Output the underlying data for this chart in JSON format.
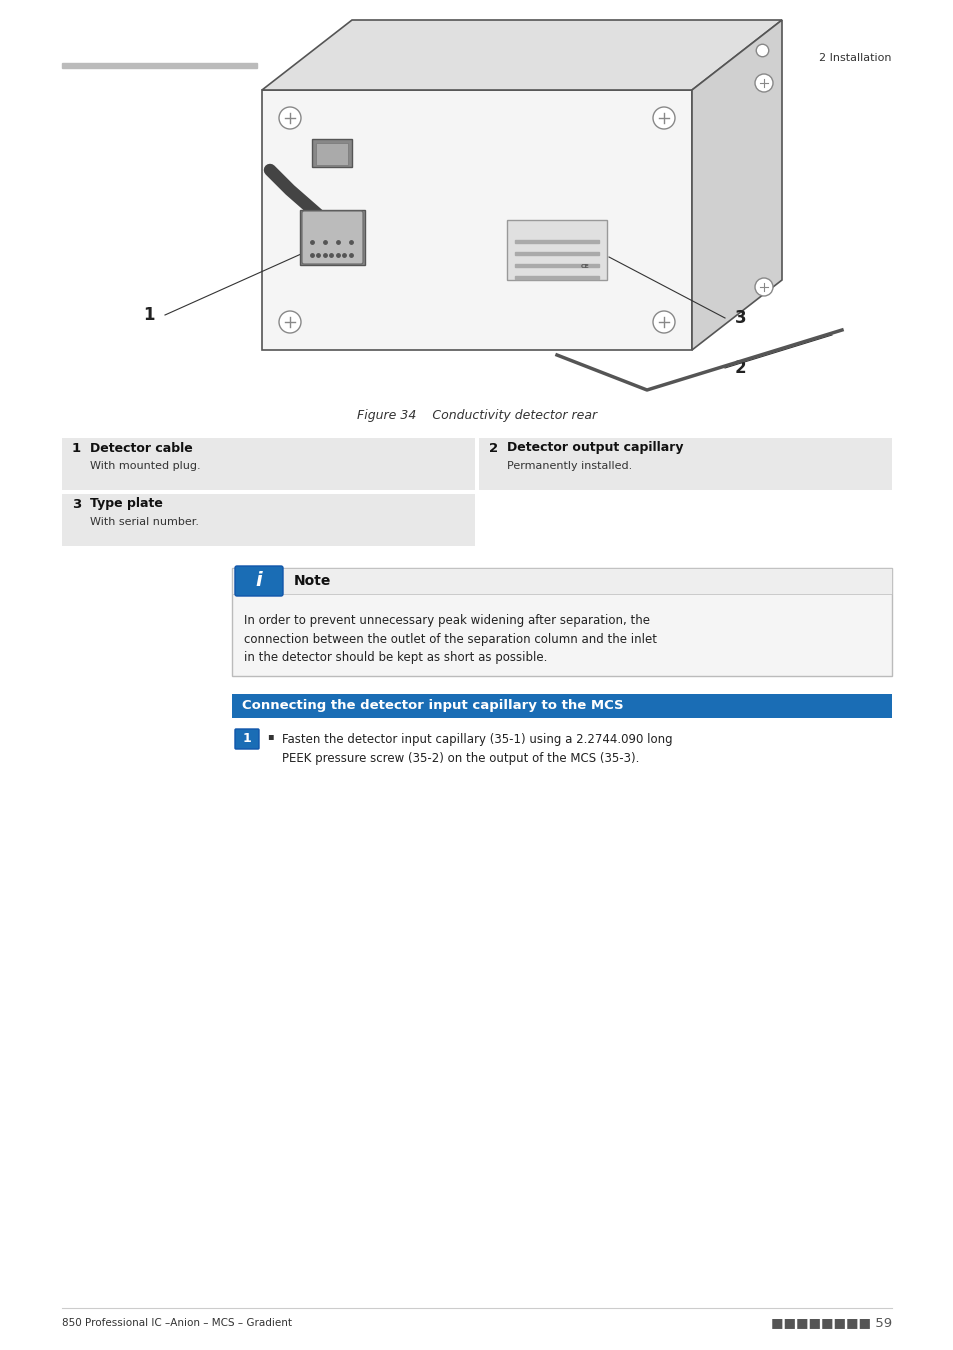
{
  "page_bg": "#ffffff",
  "header_left_text": "========================",
  "header_right_text": "2 Installation",
  "header_font_size": 8,
  "figure_caption": "Figure 34    Conductivity detector rear",
  "figure_caption_font_size": 9,
  "table_bg": "#e8e8e8",
  "label_entries": [
    {
      "num": "1",
      "title": "Detector cable",
      "desc": "With mounted plug.",
      "col": 0
    },
    {
      "num": "2",
      "title": "Detector output capillary",
      "desc": "Permanently installed.",
      "col": 1
    },
    {
      "num": "3",
      "title": "Type plate",
      "desc": "With serial number.",
      "col": 0
    }
  ],
  "note_icon_color": "#1a6db5",
  "note_title": "Note",
  "note_text": "In order to prevent unnecessary peak widening after separation, the\nconnection between the outlet of the separation column and the inlet\nin the detector should be kept as short as possible.",
  "section_title": "Connecting the detector input capillary to the MCS",
  "section_title_bg": "#1a6db5",
  "section_title_color": "#ffffff",
  "instruction_num": "1",
  "instruction_text": "Fasten the detector input capillary (35-1) using a 2.2744.090 long\nPEEK pressure screw (35-2) on the output of the MCS (35-3).",
  "footer_left": "850 Professional IC –Anion – MCS – Gradient",
  "footer_right": "■■■■■■■■ 59",
  "footer_font_size": 7.5
}
